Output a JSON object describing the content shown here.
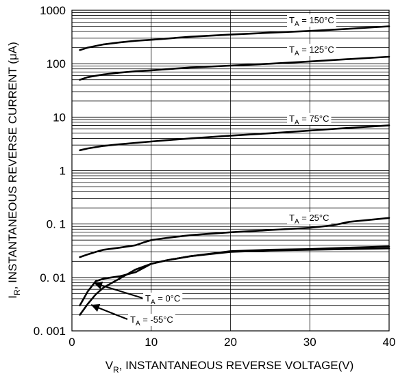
{
  "chart_data": {
    "type": "line",
    "xlabel": "V_R, INSTANTANEOUS REVERSE VOLTAGE(V)",
    "xlabel_main": "V",
    "xlabel_sub": "R",
    "xlabel_rest": ", INSTANTANEOUS REVERSE VOLTAGE(V)",
    "ylabel": "I_R, INSTANTANEOUS REVERSE CURRENT (μA)",
    "ylabel_main": "I",
    "ylabel_sub": "R",
    "ylabel_rest": ", INSTANTANEOUS REVERSE CURRENT (μA)",
    "x_scale": "linear",
    "y_scale": "log",
    "xlim": [
      0,
      40
    ],
    "ylim": [
      0.001,
      1000
    ],
    "x_ticks": [
      0,
      10,
      20,
      30,
      40
    ],
    "x_tick_labels": [
      "0",
      "10",
      "20",
      "30",
      "40"
    ],
    "y_ticks": [
      0.001,
      0.01,
      0.1,
      1,
      10,
      100,
      1000
    ],
    "y_tick_labels": [
      "0. 001",
      "0. 01",
      "0. 1",
      "1",
      "10",
      "100",
      "1000"
    ],
    "grid": true,
    "series": [
      {
        "name": "T_A = 150°C",
        "label_main": "T",
        "label_sub": "A",
        "label_rest": " = 150°C",
        "x": [
          1,
          2,
          4,
          6,
          8,
          10,
          12,
          15,
          20,
          25,
          30,
          35,
          40
        ],
        "y": [
          180,
          200,
          230,
          250,
          268,
          280,
          295,
          320,
          350,
          380,
          410,
          450,
          500
        ]
      },
      {
        "name": "T_A = 125°C",
        "label_main": "T",
        "label_sub": "A",
        "label_rest": " = 125°C",
        "x": [
          1,
          2,
          4,
          6,
          8,
          10,
          12,
          15,
          20,
          25,
          30,
          35,
          40
        ],
        "y": [
          50,
          56,
          63,
          68,
          72,
          75,
          79,
          85,
          92,
          100,
          110,
          122,
          135
        ]
      },
      {
        "name": "T_A = 75°C",
        "label_main": "T",
        "label_sub": "A",
        "label_rest": " = 75°C",
        "x": [
          1,
          2,
          4,
          6,
          8,
          10,
          12,
          15,
          20,
          25,
          30,
          35,
          40
        ],
        "y": [
          2.4,
          2.6,
          2.9,
          3.1,
          3.3,
          3.5,
          3.7,
          4.0,
          4.5,
          5.0,
          5.6,
          6.3,
          7.0
        ]
      },
      {
        "name": "T_A = 25°C",
        "label_main": "T",
        "label_sub": "A",
        "label_rest": " = 25°C",
        "x": [
          1,
          2,
          3,
          4,
          6,
          8,
          9,
          10,
          12,
          15,
          20,
          25,
          30,
          33,
          35,
          40
        ],
        "y": [
          0.024,
          0.027,
          0.03,
          0.033,
          0.036,
          0.04,
          0.045,
          0.05,
          0.055,
          0.062,
          0.07,
          0.077,
          0.085,
          0.095,
          0.11,
          0.13
        ]
      },
      {
        "name": "T_A = 0°C",
        "label_main": "T",
        "label_sub": "A",
        "label_rest": " = 0°C",
        "x": [
          1,
          2,
          3,
          4,
          5,
          6,
          8,
          10,
          12,
          15,
          20,
          25,
          30,
          35,
          40
        ],
        "y": [
          0.003,
          0.0055,
          0.0085,
          0.0095,
          0.01,
          0.0105,
          0.0125,
          0.018,
          0.021,
          0.025,
          0.031,
          0.033,
          0.034,
          0.036,
          0.038
        ]
      },
      {
        "name": "T_A = -55°C",
        "label_main": "T",
        "label_sub": "A",
        "label_rest": " = -55°C",
        "x": [
          1,
          2,
          3,
          4,
          6,
          8,
          10,
          12,
          15,
          20,
          25,
          30,
          35,
          40
        ],
        "y": [
          0.002,
          0.0032,
          0.0048,
          0.0065,
          0.0095,
          0.014,
          0.018,
          0.021,
          0.025,
          0.03,
          0.032,
          0.033,
          0.034,
          0.035
        ]
      }
    ]
  }
}
